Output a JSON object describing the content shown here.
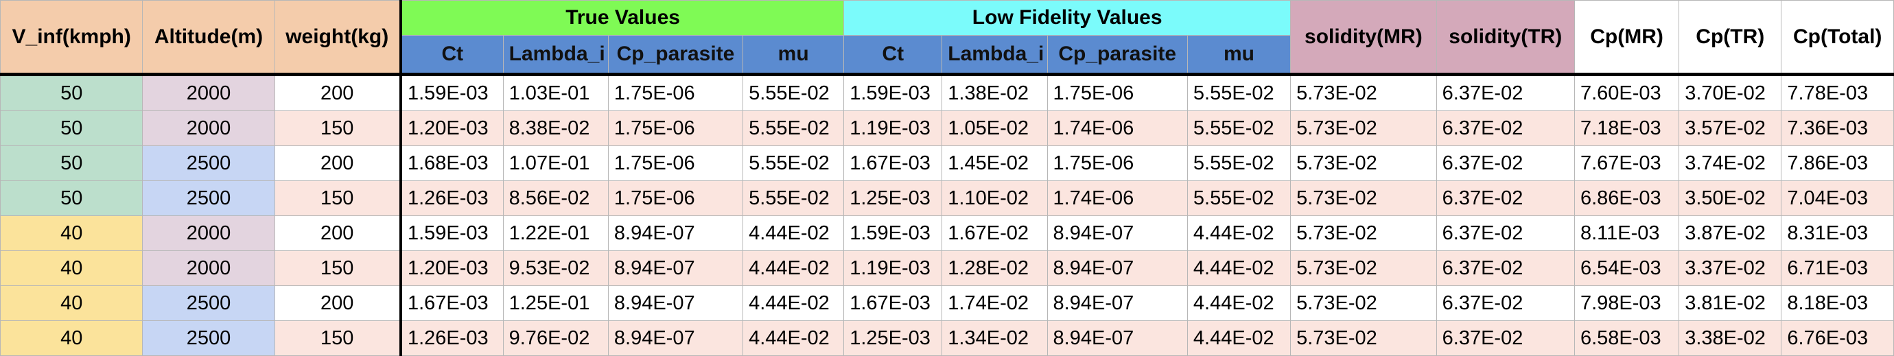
{
  "headers": {
    "v_inf": "V_inf(kmph)",
    "altitude": "Altitude(m)",
    "weight": "weight(kg)",
    "true_values": "True Values",
    "low_fidelity_values": "Low Fidelity Values",
    "solidity_mr": "solidity(MR)",
    "solidity_tr": "solidity(TR)",
    "cp_mr": "Cp(MR)",
    "cp_tr": "Cp(TR)",
    "cp_total": "Cp(Total)",
    "sub": [
      "Ct",
      "Lambda_i",
      "Cp_parasite",
      "mu",
      "Ct",
      "Lambda_i",
      "Cp_parasite",
      "mu"
    ]
  },
  "rows": [
    [
      "50",
      "2000",
      "200",
      "1.59E-03",
      "1.03E-01",
      "1.75E-06",
      "5.55E-02",
      "1.59E-03",
      "1.38E-02",
      "1.75E-06",
      "5.55E-02",
      "5.73E-02",
      "6.37E-02",
      "7.60E-03",
      "3.70E-02",
      "7.78E-03"
    ],
    [
      "50",
      "2000",
      "150",
      "1.20E-03",
      "8.38E-02",
      "1.75E-06",
      "5.55E-02",
      "1.19E-03",
      "1.05E-02",
      "1.74E-06",
      "5.55E-02",
      "5.73E-02",
      "6.37E-02",
      "7.18E-03",
      "3.57E-02",
      "7.36E-03"
    ],
    [
      "50",
      "2500",
      "200",
      "1.68E-03",
      "1.07E-01",
      "1.75E-06",
      "5.55E-02",
      "1.67E-03",
      "1.45E-02",
      "1.75E-06",
      "5.55E-02",
      "5.73E-02",
      "6.37E-02",
      "7.67E-03",
      "3.74E-02",
      "7.86E-03"
    ],
    [
      "50",
      "2500",
      "150",
      "1.26E-03",
      "8.56E-02",
      "1.75E-06",
      "5.55E-02",
      "1.25E-03",
      "1.10E-02",
      "1.74E-06",
      "5.55E-02",
      "5.73E-02",
      "6.37E-02",
      "6.86E-03",
      "3.50E-02",
      "7.04E-03"
    ],
    [
      "40",
      "2000",
      "200",
      "1.59E-03",
      "1.22E-01",
      "8.94E-07",
      "4.44E-02",
      "1.59E-03",
      "1.67E-02",
      "8.94E-07",
      "4.44E-02",
      "5.73E-02",
      "6.37E-02",
      "8.11E-03",
      "3.87E-02",
      "8.31E-03"
    ],
    [
      "40",
      "2000",
      "150",
      "1.20E-03",
      "9.53E-02",
      "8.94E-07",
      "4.44E-02",
      "1.19E-03",
      "1.28E-02",
      "8.94E-07",
      "4.44E-02",
      "5.73E-02",
      "6.37E-02",
      "6.54E-03",
      "3.37E-02",
      "6.71E-03"
    ],
    [
      "40",
      "2500",
      "200",
      "1.67E-03",
      "1.25E-01",
      "8.94E-07",
      "4.44E-02",
      "1.67E-03",
      "1.74E-02",
      "8.94E-07",
      "4.44E-02",
      "5.73E-02",
      "6.37E-02",
      "7.98E-03",
      "3.81E-02",
      "8.18E-03"
    ],
    [
      "40",
      "2500",
      "150",
      "1.26E-03",
      "9.76E-02",
      "8.94E-07",
      "4.44E-02",
      "1.25E-03",
      "1.34E-02",
      "8.94E-07",
      "4.44E-02",
      "5.73E-02",
      "6.37E-02",
      "6.58E-03",
      "3.38E-02",
      "6.76E-03"
    ]
  ],
  "colors": {
    "header_orange": "#f4ccab",
    "true_values_green": "#7ffa55",
    "low_fidelity_cyan": "#7bfbfb",
    "sub_header_blue": "#5b8bd0",
    "solidity_mauve": "#d4a9ba",
    "v50_green": "#bcdfcc",
    "v40_yellow": "#fbe39b",
    "alt2000_lilac": "#e3d4df",
    "alt2500_blue": "#c7d6f4",
    "row_stripe_pink": "#fbe5df"
  }
}
